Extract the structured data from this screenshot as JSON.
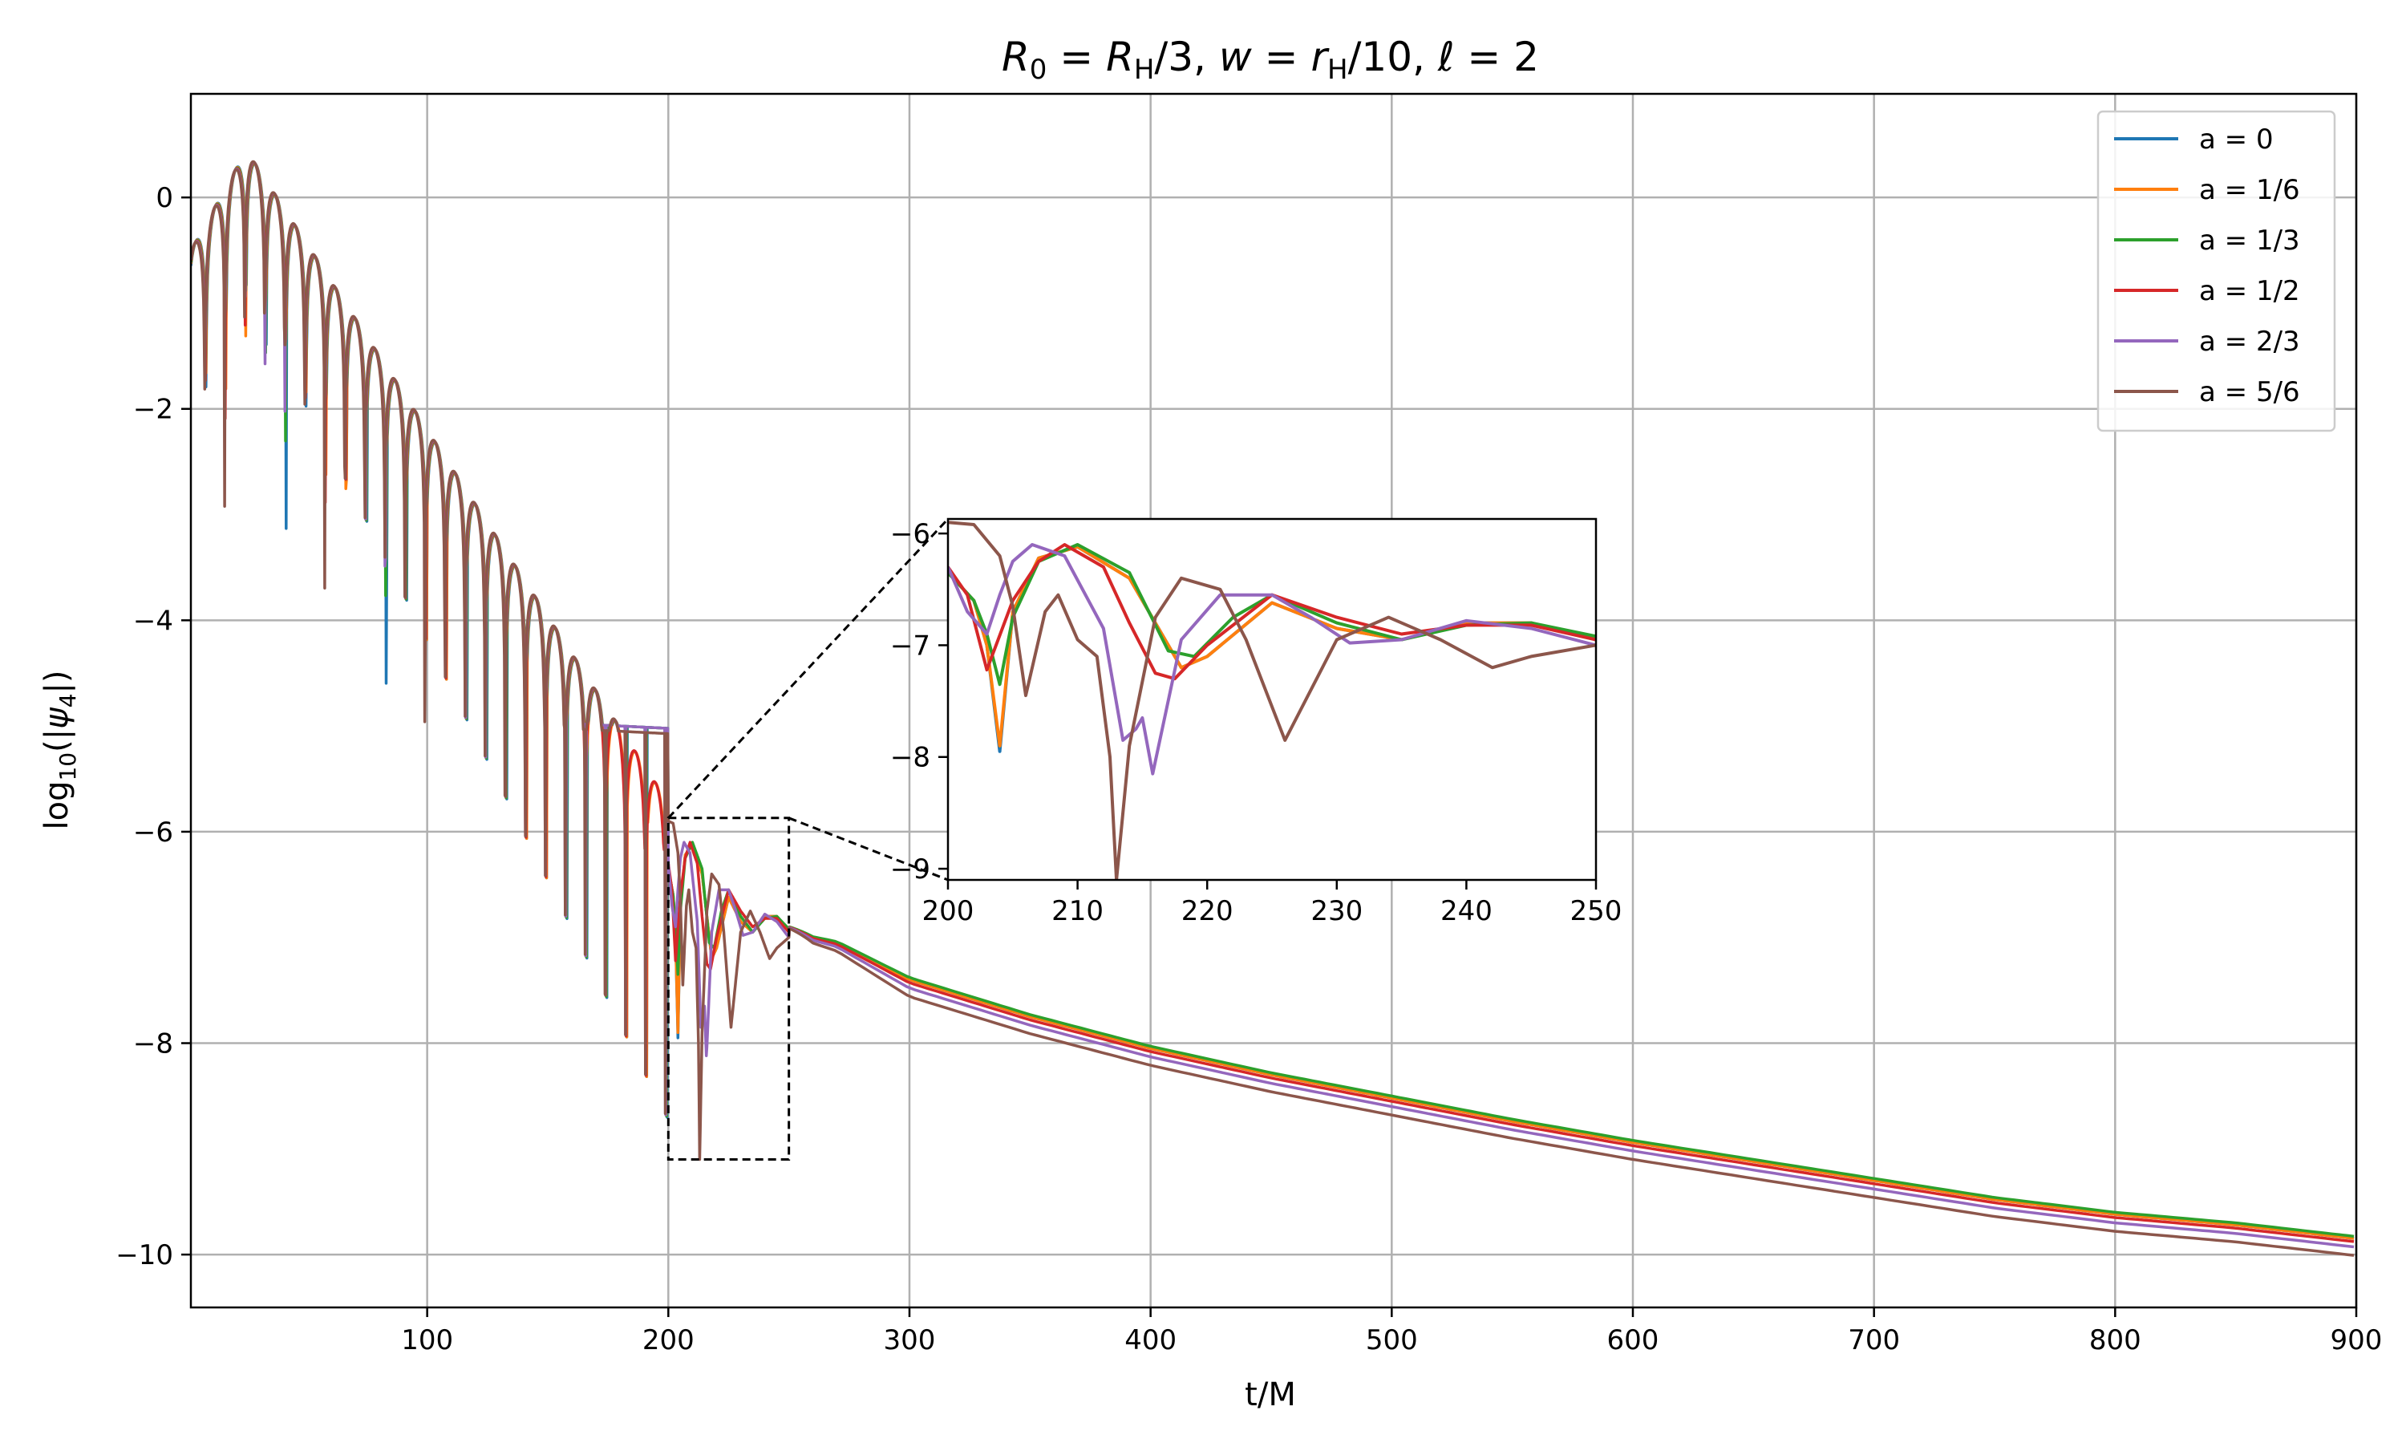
{
  "chart_data": {
    "type": "line",
    "title": "R_0 = R_H/3, w = r_H/10, ℓ = 2",
    "xlabel": "t/M",
    "ylabel": "log10(|ψ4|)",
    "xlim": [
      2,
      900
    ],
    "ylim": [
      -10.5,
      0.98
    ],
    "xticks": [
      "100",
      "200",
      "300",
      "400",
      "500",
      "600",
      "700",
      "800",
      "900"
    ],
    "yticks": [
      "0",
      "−2",
      "−4",
      "−6",
      "−8",
      "−10"
    ],
    "grid": true,
    "legend_position": "top-right",
    "series": [
      {
        "name": "a = 0",
        "color": "#1f77b4",
        "tail_offset": 0.0,
        "dip_depth": [
          -4.15,
          -7.95
        ]
      },
      {
        "name": "a = 1/6",
        "color": "#ff7f0e",
        "tail_offset": 0.0,
        "dip_depth": [
          -5.5,
          -7.9
        ]
      },
      {
        "name": "a = 1/3",
        "color": "#2ca02c",
        "tail_offset": 0.02,
        "dip_depth": [
          -4.85,
          -7.35
        ]
      },
      {
        "name": "a = 1/2",
        "color": "#d62728",
        "tail_offset": -0.03,
        "dip_depth": [
          -5.75,
          -7.2
        ]
      },
      {
        "name": "a = 2/3",
        "color": "#9467bd",
        "tail_offset": -0.08,
        "dip_depth": [
          -6.75,
          -8.15
        ]
      },
      {
        "name": "a = 5/6",
        "color": "#8c564b",
        "tail_offset": -0.16,
        "dip_depth": [
          -4.65,
          -9.1
        ]
      }
    ],
    "tail_points": {
      "t": [
        250,
        270,
        300,
        350,
        400,
        450,
        500,
        550,
        600,
        650,
        700,
        750,
        800,
        850,
        900
      ],
      "log10_psi4": [
        -6.95,
        -7.05,
        -7.4,
        -7.75,
        -8.05,
        -8.3,
        -8.52,
        -8.74,
        -8.94,
        -9.12,
        -9.3,
        -9.48,
        -9.62,
        -9.72,
        -9.85
      ]
    },
    "inset": {
      "xlim": [
        200,
        250
      ],
      "ylim": [
        -9.1,
        -5.87
      ],
      "xticks": [
        "200",
        "210",
        "220",
        "230",
        "240",
        "250"
      ],
      "yticks": [
        "−6",
        "−7",
        "−8",
        "−9"
      ],
      "series": [
        {
          "name": "a = 0",
          "t": [
            200,
            202,
            203,
            204,
            205,
            207,
            210,
            214,
            218,
            220,
            225,
            230,
            235,
            240,
            245,
            250
          ],
          "y": [
            -6.35,
            -6.6,
            -7.0,
            -7.95,
            -6.7,
            -6.22,
            -6.12,
            -6.4,
            -7.2,
            -7.1,
            -6.62,
            -6.85,
            -6.95,
            -6.8,
            -6.8,
            -6.95
          ]
        },
        {
          "name": "a = 1/6",
          "t": [
            200,
            202,
            203,
            204,
            205,
            207,
            210,
            214,
            218,
            220,
            225,
            230,
            235,
            240,
            245,
            250
          ],
          "y": [
            -6.35,
            -6.6,
            -7.0,
            -7.9,
            -6.7,
            -6.22,
            -6.12,
            -6.4,
            -7.2,
            -7.1,
            -6.62,
            -6.85,
            -6.95,
            -6.8,
            -6.8,
            -6.95
          ]
        },
        {
          "name": "a = 1/3",
          "t": [
            200,
            202,
            203,
            204,
            205,
            207,
            210,
            214,
            217,
            219,
            222,
            225,
            230,
            235,
            240,
            245,
            250
          ],
          "y": [
            -6.35,
            -6.6,
            -6.9,
            -7.35,
            -6.75,
            -6.25,
            -6.1,
            -6.35,
            -7.05,
            -7.1,
            -6.75,
            -6.55,
            -6.8,
            -6.95,
            -6.82,
            -6.8,
            -6.92
          ]
        },
        {
          "name": "a = 1/2",
          "t": [
            200,
            201.5,
            203,
            205,
            207,
            209,
            212,
            214,
            216,
            217.5,
            220,
            225,
            230,
            235,
            240,
            245,
            250
          ],
          "y": [
            -6.3,
            -6.55,
            -7.22,
            -6.6,
            -6.25,
            -6.1,
            -6.3,
            -6.8,
            -7.25,
            -7.3,
            -7.0,
            -6.55,
            -6.75,
            -6.9,
            -6.82,
            -6.82,
            -6.95
          ]
        },
        {
          "name": "a = 2/3",
          "t": [
            200,
            201.5,
            203,
            204,
            205,
            206.5,
            209,
            212,
            213.5,
            214.5,
            215,
            215.8,
            218,
            221,
            225,
            228,
            231,
            235,
            240,
            245,
            250
          ],
          "y": [
            -6.3,
            -6.7,
            -6.9,
            -6.55,
            -6.25,
            -6.1,
            -6.2,
            -6.85,
            -7.85,
            -7.75,
            -7.65,
            -8.15,
            -6.95,
            -6.55,
            -6.55,
            -6.75,
            -6.98,
            -6.95,
            -6.78,
            -6.85,
            -7.0
          ]
        },
        {
          "name": "a = 5/6",
          "t": [
            200,
            202,
            204,
            205,
            206,
            207.5,
            208.5,
            210,
            211.5,
            212.5,
            213,
            214,
            216,
            218,
            221,
            223,
            226,
            228,
            230,
            234,
            238,
            242,
            245,
            250
          ],
          "y": [
            -5.9,
            -5.92,
            -6.2,
            -6.65,
            -7.45,
            -6.7,
            -6.55,
            -6.95,
            -7.1,
            -8.0,
            -9.1,
            -7.9,
            -6.75,
            -6.4,
            -6.5,
            -6.95,
            -7.85,
            -7.4,
            -6.95,
            -6.75,
            -6.95,
            -7.2,
            -7.1,
            -7.0
          ]
        }
      ]
    }
  }
}
